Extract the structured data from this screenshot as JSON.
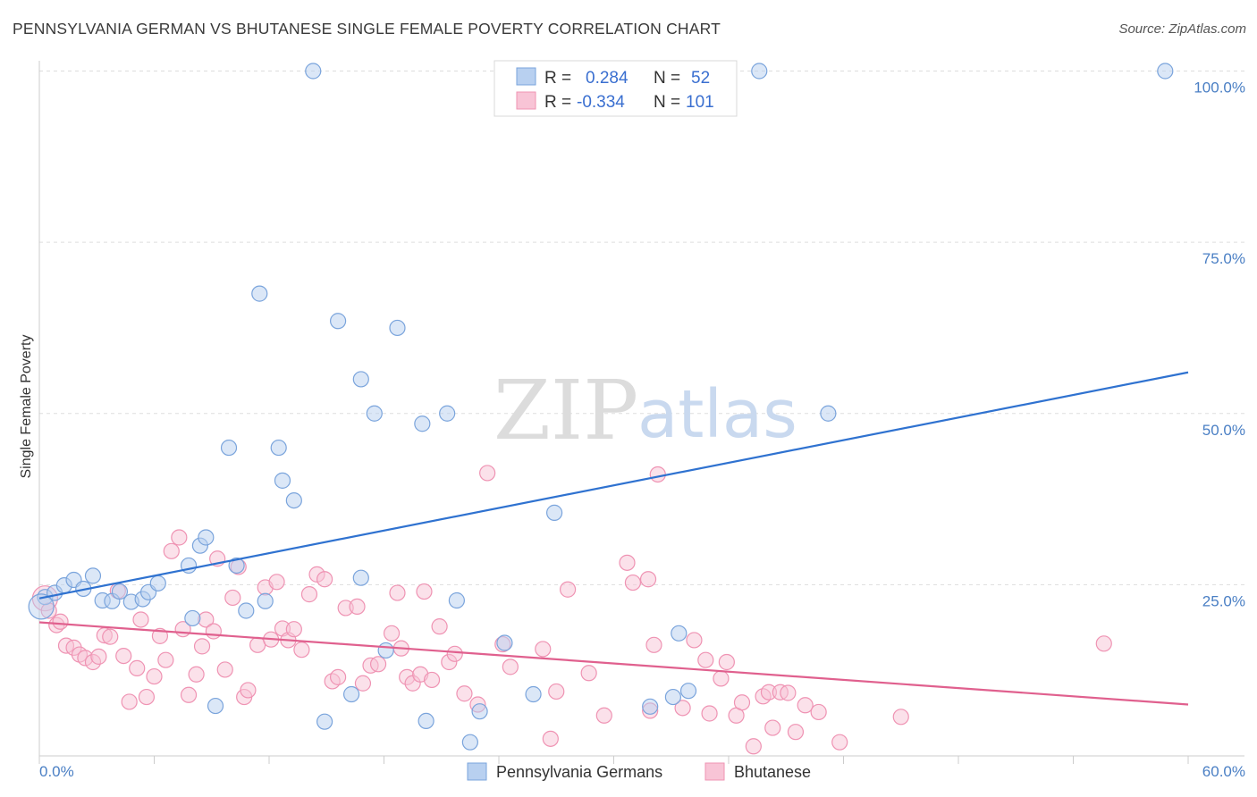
{
  "title": "PENNSYLVANIA GERMAN VS BHUTANESE SINGLE FEMALE POVERTY CORRELATION CHART",
  "source": "Source: ZipAtlas.com",
  "watermark": {
    "zip": "ZIP",
    "atlas": "atlas"
  },
  "colors": {
    "blue_fill": "#b8d0f0",
    "blue_stroke": "#7aa4dc",
    "blue_line": "#2f72d0",
    "pink_fill": "#f8c4d6",
    "pink_stroke": "#ef93b3",
    "pink_line": "#e0608e",
    "grid": "#dddddd",
    "tick_label": "#4a7fc4"
  },
  "legend": {
    "r_label": "R =",
    "n_label": "N =",
    "series1": {
      "r": "0.284",
      "n": "52"
    },
    "series2": {
      "r": "-0.334",
      "n": "101"
    }
  },
  "chart_data": {
    "type": "scatter",
    "title": "PENNSYLVANIA GERMAN VS BHUTANESE SINGLE FEMALE POVERTY CORRELATION CHART",
    "xlabel": "",
    "ylabel": "Single Female Poverty",
    "xlim": [
      0,
      60
    ],
    "ylim": [
      0,
      105
    ],
    "x_tick_labels": [
      "0.0%",
      "60.0%"
    ],
    "y_ticks": [
      25,
      50,
      75,
      100
    ],
    "y_tick_labels": [
      "25.0%",
      "50.0%",
      "75.0%",
      "100.0%"
    ],
    "grid": true,
    "legend_position": "top-center",
    "series": [
      {
        "name": "Pennsylvania Germans",
        "color": "#b8d0f0",
        "r": 0.284,
        "n": 52,
        "trend": {
          "x": [
            0,
            60
          ],
          "y": [
            23.0,
            56.0
          ]
        },
        "points": [
          [
            0.3,
            23.2
          ],
          [
            0.8,
            23.8
          ],
          [
            1.3,
            24.9
          ],
          [
            1.8,
            25.7
          ],
          [
            2.3,
            24.4
          ],
          [
            2.8,
            26.3
          ],
          [
            3.3,
            22.7
          ],
          [
            3.8,
            22.6
          ],
          [
            4.2,
            24.0
          ],
          [
            4.8,
            22.5
          ],
          [
            5.4,
            22.9
          ],
          [
            5.7,
            23.9
          ],
          [
            6.2,
            25.2
          ],
          [
            7.8,
            27.8
          ],
          [
            8.0,
            20.1
          ],
          [
            8.4,
            30.7
          ],
          [
            8.7,
            31.9
          ],
          [
            9.2,
            7.3
          ],
          [
            9.9,
            45.0
          ],
          [
            10.3,
            27.8
          ],
          [
            10.8,
            21.2
          ],
          [
            11.5,
            67.5
          ],
          [
            11.8,
            22.6
          ],
          [
            12.5,
            45.0
          ],
          [
            12.7,
            40.2
          ],
          [
            13.3,
            37.3
          ],
          [
            14.3,
            100.0
          ],
          [
            14.9,
            5.0
          ],
          [
            15.6,
            63.5
          ],
          [
            16.3,
            9.0
          ],
          [
            16.8,
            55.0
          ],
          [
            16.8,
            26.0
          ],
          [
            17.5,
            50.0
          ],
          [
            18.1,
            15.4
          ],
          [
            18.7,
            62.5
          ],
          [
            20.0,
            48.5
          ],
          [
            20.2,
            5.1
          ],
          [
            21.3,
            50.0
          ],
          [
            21.8,
            22.7
          ],
          [
            22.5,
            2.0
          ],
          [
            23.0,
            6.5
          ],
          [
            24.3,
            16.5
          ],
          [
            25.8,
            9.0
          ],
          [
            26.9,
            35.5
          ],
          [
            31.9,
            7.2
          ],
          [
            33.1,
            8.6
          ],
          [
            33.4,
            17.9
          ],
          [
            33.9,
            9.5
          ],
          [
            37.6,
            100.0
          ],
          [
            41.2,
            50.0
          ],
          [
            58.8,
            100.0
          ],
          [
            0.1,
            21.8
          ]
        ]
      },
      {
        "name": "Bhutanese",
        "color": "#f8c4d6",
        "r": -0.334,
        "n": 101,
        "trend": {
          "x": [
            0,
            60
          ],
          "y": [
            19.5,
            7.5
          ]
        },
        "points": [
          [
            0.3,
            23.0
          ],
          [
            0.5,
            21.2
          ],
          [
            0.9,
            19.1
          ],
          [
            1.1,
            19.6
          ],
          [
            1.4,
            16.1
          ],
          [
            1.8,
            15.8
          ],
          [
            2.1,
            14.8
          ],
          [
            2.4,
            14.3
          ],
          [
            2.8,
            13.7
          ],
          [
            3.1,
            14.5
          ],
          [
            3.4,
            17.6
          ],
          [
            3.7,
            17.4
          ],
          [
            4.1,
            24.1
          ],
          [
            4.4,
            14.6
          ],
          [
            4.7,
            7.9
          ],
          [
            5.1,
            12.8
          ],
          [
            5.3,
            19.9
          ],
          [
            5.6,
            8.6
          ],
          [
            6.0,
            11.6
          ],
          [
            6.3,
            17.5
          ],
          [
            6.6,
            14.0
          ],
          [
            6.9,
            29.9
          ],
          [
            7.3,
            31.9
          ],
          [
            7.5,
            18.5
          ],
          [
            7.8,
            8.9
          ],
          [
            8.2,
            11.9
          ],
          [
            8.5,
            16.0
          ],
          [
            8.7,
            19.9
          ],
          [
            9.1,
            18.2
          ],
          [
            9.3,
            28.8
          ],
          [
            9.7,
            12.6
          ],
          [
            10.1,
            23.1
          ],
          [
            10.4,
            27.6
          ],
          [
            10.7,
            8.6
          ],
          [
            10.9,
            9.6
          ],
          [
            11.4,
            16.2
          ],
          [
            11.8,
            24.6
          ],
          [
            12.1,
            17.0
          ],
          [
            12.4,
            25.4
          ],
          [
            12.7,
            18.6
          ],
          [
            13.0,
            16.9
          ],
          [
            13.3,
            18.5
          ],
          [
            13.7,
            15.5
          ],
          [
            14.1,
            23.6
          ],
          [
            14.5,
            26.5
          ],
          [
            14.9,
            25.8
          ],
          [
            15.3,
            10.9
          ],
          [
            15.6,
            11.5
          ],
          [
            16.0,
            21.6
          ],
          [
            16.6,
            21.8
          ],
          [
            16.9,
            10.6
          ],
          [
            17.3,
            13.2
          ],
          [
            17.7,
            13.4
          ],
          [
            18.4,
            17.9
          ],
          [
            18.7,
            23.8
          ],
          [
            18.9,
            15.7
          ],
          [
            19.2,
            11.5
          ],
          [
            19.5,
            10.6
          ],
          [
            19.9,
            11.9
          ],
          [
            20.1,
            24.0
          ],
          [
            20.5,
            11.1
          ],
          [
            20.9,
            18.9
          ],
          [
            21.4,
            13.7
          ],
          [
            21.7,
            14.9
          ],
          [
            22.2,
            9.1
          ],
          [
            22.9,
            7.5
          ],
          [
            23.4,
            41.3
          ],
          [
            24.2,
            16.3
          ],
          [
            24.6,
            13.0
          ],
          [
            26.3,
            15.6
          ],
          [
            26.7,
            2.5
          ],
          [
            27.0,
            9.4
          ],
          [
            27.6,
            24.3
          ],
          [
            28.7,
            12.1
          ],
          [
            29.5,
            5.9
          ],
          [
            30.7,
            28.2
          ],
          [
            31.0,
            25.3
          ],
          [
            31.8,
            25.8
          ],
          [
            32.1,
            16.2
          ],
          [
            31.9,
            6.6
          ],
          [
            32.3,
            41.1
          ],
          [
            33.6,
            7.0
          ],
          [
            34.2,
            16.9
          ],
          [
            34.8,
            14.0
          ],
          [
            35.0,
            6.2
          ],
          [
            35.6,
            11.3
          ],
          [
            35.9,
            13.7
          ],
          [
            36.4,
            5.9
          ],
          [
            36.7,
            7.8
          ],
          [
            37.3,
            1.4
          ],
          [
            37.8,
            8.7
          ],
          [
            38.1,
            9.3
          ],
          [
            38.3,
            4.1
          ],
          [
            38.7,
            9.3
          ],
          [
            39.1,
            9.2
          ],
          [
            39.5,
            3.5
          ],
          [
            40.0,
            7.4
          ],
          [
            40.7,
            6.4
          ],
          [
            41.8,
            2.0
          ],
          [
            45.0,
            5.7
          ],
          [
            55.6,
            16.4
          ]
        ]
      }
    ]
  }
}
